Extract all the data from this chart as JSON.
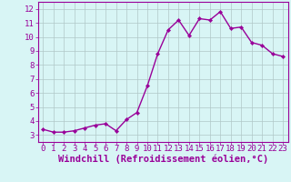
{
  "x": [
    0,
    1,
    2,
    3,
    4,
    5,
    6,
    7,
    8,
    9,
    10,
    11,
    12,
    13,
    14,
    15,
    16,
    17,
    18,
    19,
    20,
    21,
    22,
    23
  ],
  "y": [
    3.4,
    3.2,
    3.2,
    3.3,
    3.5,
    3.7,
    3.8,
    3.3,
    4.1,
    4.6,
    6.5,
    8.8,
    10.5,
    11.2,
    10.1,
    11.3,
    11.2,
    11.8,
    10.6,
    10.7,
    9.6,
    9.4,
    8.8,
    8.6
  ],
  "line_color": "#990099",
  "marker": "D",
  "marker_size": 2.2,
  "bg_color": "#d8f5f5",
  "grid_color": "#b0c8c8",
  "xlabel": "Windchill (Refroidissement éolien,°C)",
  "ylabel": "",
  "xlim": [
    -0.5,
    23.5
  ],
  "ylim": [
    2.5,
    12.5
  ],
  "yticks": [
    3,
    4,
    5,
    6,
    7,
    8,
    9,
    10,
    11,
    12
  ],
  "xticks": [
    0,
    1,
    2,
    3,
    4,
    5,
    6,
    7,
    8,
    9,
    10,
    11,
    12,
    13,
    14,
    15,
    16,
    17,
    18,
    19,
    20,
    21,
    22,
    23
  ],
  "tick_color": "#990099",
  "tick_label_fontsize": 6.5,
  "xlabel_fontsize": 7.5,
  "line_width": 1.0,
  "spine_color": "#990099"
}
